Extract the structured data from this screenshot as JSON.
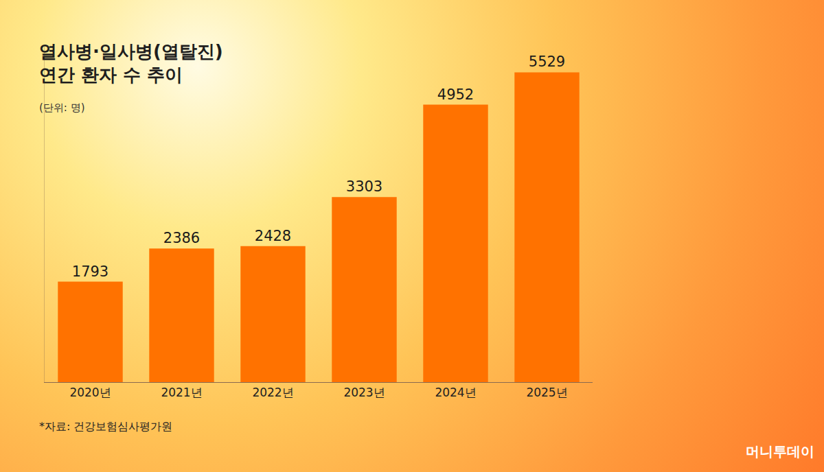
{
  "chart_data": {
    "type": "bar",
    "title": "열사병·일사병(열탈진)\n연간 환자 수 추이",
    "subtitle": "(단위: 명)",
    "categories": [
      "2020년",
      "2021년",
      "2022년",
      "2023년",
      "2024년",
      "2025년"
    ],
    "values": [
      1793,
      2386,
      2428,
      3303,
      4952,
      5529
    ],
    "color": "#ff7200",
    "ylim": [
      0,
      6000
    ],
    "yticks": [],
    "grid": false,
    "data_labels": true,
    "tick_labels": "x",
    "annotations": [
      "*자료: 건강보험심사평가원",
      "머니투데이"
    ]
  }
}
